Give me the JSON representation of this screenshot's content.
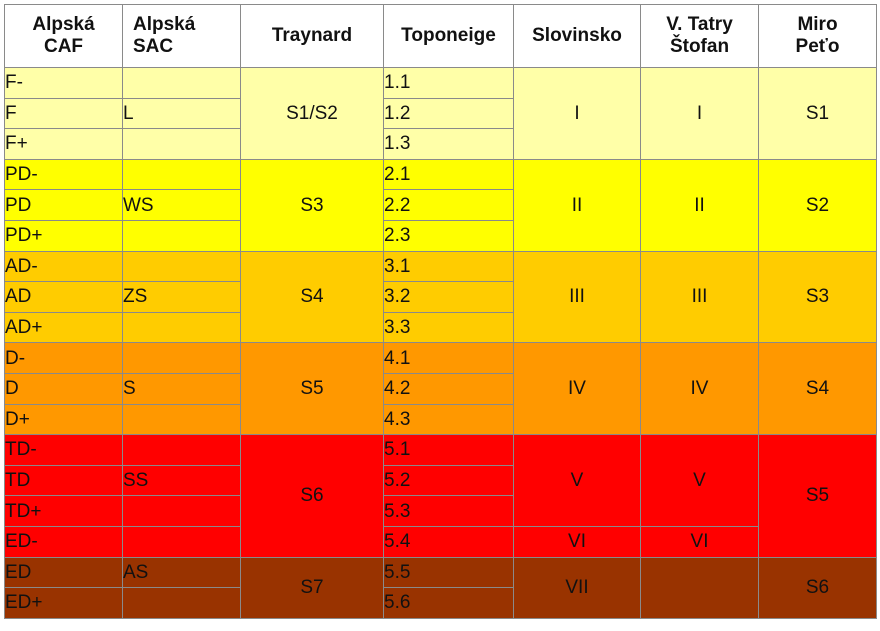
{
  "headers": {
    "caf": [
      "Alpská",
      "CAF"
    ],
    "sac": [
      "Alpská",
      "SAC"
    ],
    "traynard": "Traynard",
    "toponeige": "Toponeige",
    "slovinsko": "Slovinsko",
    "tatry": [
      "V. Tatry",
      "Štofan"
    ],
    "miro": [
      "Miro",
      "Peťo"
    ]
  },
  "caf": [
    "F-",
    "F",
    "F+",
    "PD-",
    "PD",
    "PD+",
    "AD-",
    "AD",
    "AD+",
    "D-",
    "D",
    "D+",
    "TD-",
    "TD",
    "TD+",
    "ED-",
    "ED",
    "ED+"
  ],
  "sac": [
    "L",
    "WS",
    "ZS",
    "S",
    "SS",
    "AS"
  ],
  "traynard": [
    "S1/S2",
    "S3",
    "S4",
    "S5",
    "S6",
    "S7"
  ],
  "toponeige": [
    "1.1",
    "1.2",
    "1.3",
    "2.1",
    "2.2",
    "2.3",
    "3.1",
    "3.2",
    "3.3",
    "4.1",
    "4.2",
    "4.3",
    "5.1",
    "5.2",
    "5.3",
    "5.4",
    "5.5",
    "5.6"
  ],
  "slovinsko": [
    "I",
    "II",
    "III",
    "IV",
    "V",
    "VI",
    "VII"
  ],
  "tatry": [
    "I",
    "II",
    "III",
    "IV",
    "V",
    "VI"
  ],
  "miro": [
    "S1",
    "S2",
    "S3",
    "S4",
    "S5",
    "S6"
  ],
  "colors": {
    "z1": "#ffffa8",
    "z2": "#ffff00",
    "z3": "#ffcc00",
    "z4": "#ff9800",
    "z5": "#ff0000",
    "z6": "#993300"
  }
}
